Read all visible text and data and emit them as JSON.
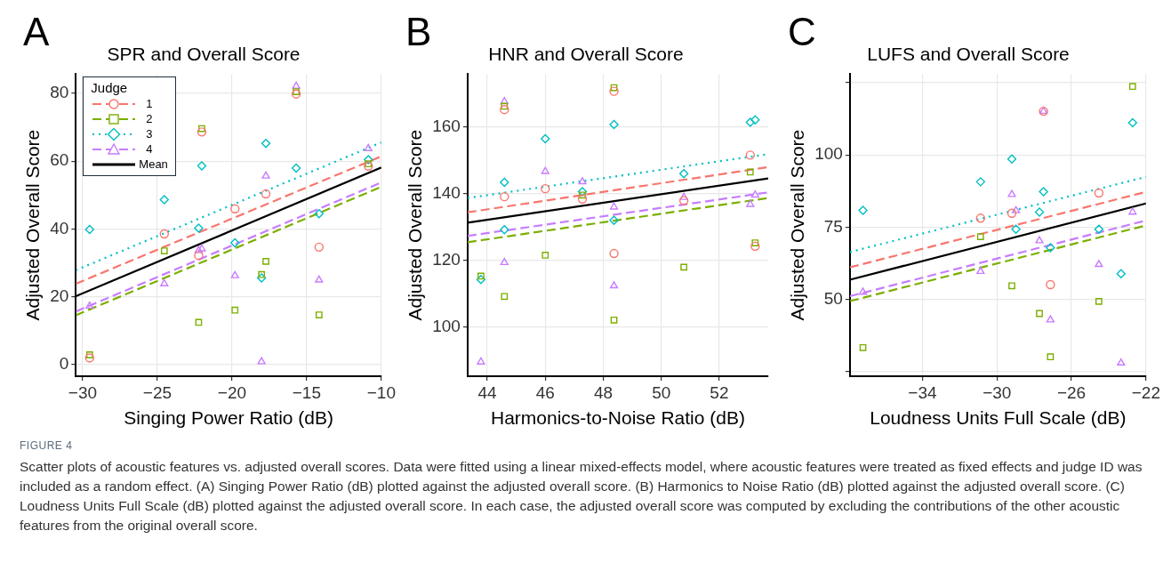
{
  "chart_data": [
    {
      "type": "scatter",
      "title": "SPR and Overall Score",
      "xlabel": "Singing Power Ratio (dB)",
      "ylabel": "Adjusted Overall Score",
      "annotations": [
        "A"
      ],
      "xlim": [
        -30.45,
        -10
      ],
      "xticks": [
        {
          "value": -30,
          "label": "−30"
        },
        {
          "value": -25,
          "label": "−25"
        },
        {
          "value": -20,
          "label": "−20"
        },
        {
          "value": -15,
          "label": "−15"
        },
        {
          "value": -10,
          "label": "−10"
        }
      ],
      "ylim": [
        -3.5,
        85.7
      ],
      "yticks": [
        0,
        20,
        40,
        60,
        80
      ],
      "grid": true,
      "legend": "top left",
      "legend_title": "Judge",
      "series": [
        {
          "name": "1",
          "color": "#f8766d",
          "marker": "circle",
          "line_style": "dashed",
          "x": [
            -29.53,
            -24.53,
            -22.23,
            -22.02,
            -19.8,
            -17.73,
            -15.7,
            -14.17,
            -10.87
          ],
          "values": [
            1.9,
            38.5,
            32.1,
            68.6,
            45.9,
            50.3,
            79.8,
            34.6,
            58.5
          ]
        },
        {
          "name": "2",
          "color": "#7cae00",
          "marker": "square",
          "line_style": "dashed",
          "x": [
            -29.53,
            -24.53,
            -22.23,
            -22.02,
            -19.8,
            -18.02,
            -17.73,
            -15.7,
            -14.17,
            -10.87
          ],
          "values": [
            2.8,
            33.5,
            12.4,
            69.6,
            16.0,
            26.5,
            30.4,
            80.5,
            14.6,
            59.2
          ]
        },
        {
          "name": "3",
          "color": "#00bfc4",
          "marker": "diamond",
          "line_style": "dotted",
          "x": [
            -29.53,
            -24.53,
            -22.23,
            -22.02,
            -19.8,
            -18.02,
            -17.73,
            -15.7,
            -14.17,
            -10.87
          ],
          "values": [
            39.8,
            48.6,
            40.2,
            58.6,
            35.9,
            25.5,
            65.2,
            57.9,
            44.5,
            60.4
          ]
        },
        {
          "name": "4",
          "color": "#c77cff",
          "marker": "triangle",
          "line_style": "dashed",
          "x": [
            -29.53,
            -24.53,
            -22.23,
            -22.02,
            -19.8,
            -18.02,
            -17.73,
            -15.7,
            -14.17,
            -10.87
          ],
          "values": [
            17.2,
            23.8,
            33.6,
            34.1,
            26.2,
            0.8,
            55.6,
            82.1,
            24.9,
            63.7
          ]
        },
        {
          "type": "line",
          "color": "#f8766d",
          "marker": "none",
          "line_style": "dashed",
          "x": [
            -30.45,
            -10
          ],
          "values": [
            23.8,
            61.4
          ]
        },
        {
          "type": "line",
          "color": "#7cae00",
          "marker": "none",
          "line_style": "dashed",
          "x": [
            -30.45,
            -10
          ],
          "values": [
            14.5,
            52.4
          ]
        },
        {
          "type": "line",
          "color": "#00bfc4",
          "marker": "none",
          "line_style": "dotted",
          "x": [
            -30.45,
            -10
          ],
          "values": [
            27.8,
            65.5
          ]
        },
        {
          "type": "line",
          "color": "#c77cff",
          "marker": "none",
          "line_style": "dashed",
          "x": [
            -30.45,
            -10
          ],
          "values": [
            15.6,
            53.7
          ]
        },
        {
          "type": "line",
          "name": "Mean",
          "color": "#000000",
          "marker": "none",
          "line_style": "solid",
          "x": [
            -30.45,
            -10
          ],
          "values": [
            20.1,
            58.1
          ]
        }
      ]
    },
    {
      "type": "scatter",
      "title": "HNR and Overall Score",
      "xlabel": "Harmonics-to-Noise Ratio (dB)",
      "ylabel": "Adjusted Overall Score",
      "annotations": [
        "B"
      ],
      "xlim": [
        43.32,
        53.69
      ],
      "xticks": [
        44,
        46,
        48,
        50,
        52
      ],
      "ylim": [
        85.1,
        176
      ],
      "yticks": [
        100,
        120,
        140,
        160
      ],
      "grid": true,
      "series": [
        {
          "color": "#f8766d",
          "marker": "circle",
          "x": [
            44.59,
            44.59,
            46.0,
            47.28,
            48.37,
            48.37,
            50.78,
            53.07,
            53.24
          ],
          "values": [
            165.3,
            139.1,
            141.5,
            138.4,
            170.8,
            122.0,
            137.9,
            151.6,
            124.2
          ]
        },
        {
          "color": "#7cae00",
          "marker": "square",
          "x": [
            43.78,
            44.59,
            44.59,
            46.0,
            47.28,
            48.37,
            48.37,
            50.78,
            53.07,
            53.24
          ],
          "values": [
            115.2,
            166.3,
            109.1,
            121.5,
            139.6,
            171.9,
            102.0,
            117.9,
            146.5,
            125.2
          ]
        },
        {
          "color": "#00bfc4",
          "marker": "diamond",
          "x": [
            43.78,
            44.59,
            44.59,
            46.0,
            47.28,
            48.37,
            48.37,
            50.78,
            53.07,
            53.24
          ],
          "values": [
            114.2,
            143.4,
            129.2,
            156.5,
            140.6,
            160.8,
            132.0,
            146.0,
            161.5,
            162.2
          ]
        },
        {
          "color": "#c77cff",
          "marker": "triangle",
          "x": [
            43.78,
            44.59,
            44.59,
            46.0,
            47.28,
            48.37,
            48.37,
            50.78,
            53.07,
            53.24
          ],
          "values": [
            89.4,
            167.7,
            119.3,
            146.7,
            143.6,
            136.0,
            112.3,
            138.9,
            136.8,
            139.6
          ]
        },
        {
          "type": "line",
          "color": "#f8766d",
          "marker": "none",
          "line_style": "dashed",
          "x": [
            43.32,
            53.69
          ],
          "values": [
            134.4,
            148.0
          ]
        },
        {
          "type": "line",
          "color": "#7cae00",
          "marker": "none",
          "line_style": "dashed",
          "x": [
            43.32,
            53.69
          ],
          "values": [
            125.4,
            138.7
          ]
        },
        {
          "type": "line",
          "color": "#00bfc4",
          "marker": "none",
          "line_style": "dotted",
          "x": [
            43.32,
            53.69
          ],
          "values": [
            138.7,
            151.9
          ]
        },
        {
          "type": "line",
          "color": "#c77cff",
          "marker": "none",
          "line_style": "dashed",
          "x": [
            43.32,
            53.69
          ],
          "values": [
            127.3,
            140.4
          ]
        },
        {
          "type": "line",
          "color": "#000000",
          "marker": "none",
          "line_style": "solid",
          "x": [
            43.32,
            53.69
          ],
          "values": [
            131.3,
            144.6
          ]
        }
      ]
    },
    {
      "type": "scatter",
      "title": "LUFS and Overall Score",
      "xlabel": "Loudness Units Full Scale (dB)",
      "ylabel": "Adjusted Overall Score",
      "annotations": [
        "C"
      ],
      "xlim": [
        -37.89,
        -22
      ],
      "xticks": [
        {
          "value": -34,
          "label": "−34"
        },
        {
          "value": -30,
          "label": "−30"
        },
        {
          "value": -26,
          "label": "−26"
        },
        {
          "value": -22,
          "label": "−22"
        }
      ],
      "ylim": [
        23.4,
        128
      ],
      "yticks": [
        {
          "value": 25,
          "label": null
        },
        50,
        75,
        100,
        {
          "value": 125,
          "label": null
        }
      ],
      "grid": true,
      "series": [
        {
          "color": "#f8766d",
          "marker": "circle",
          "x": [
            -30.88,
            -29.2,
            -27.5,
            -27.13,
            -24.53
          ],
          "values": [
            78.1,
            79.8,
            115.1,
            55.1,
            86.8
          ]
        },
        {
          "color": "#7cae00",
          "marker": "square",
          "x": [
            -37.19,
            -30.88,
            -29.2,
            -27.72,
            -27.13,
            -24.53,
            -22.72
          ],
          "values": [
            33.3,
            71.7,
            54.7,
            45.1,
            30.1,
            49.3,
            123.7
          ]
        },
        {
          "color": "#00bfc4",
          "marker": "diamond",
          "x": [
            -37.19,
            -30.88,
            -29.2,
            -28.98,
            -27.72,
            -27.5,
            -27.13,
            -24.53,
            -23.34,
            -22.72
          ],
          "values": [
            80.8,
            90.7,
            98.6,
            74.3,
            80.2,
            87.3,
            67.9,
            74.3,
            58.9,
            111.1
          ]
        },
        {
          "color": "#c77cff",
          "marker": "triangle",
          "x": [
            -37.19,
            -30.88,
            -29.2,
            -28.98,
            -27.72,
            -27.5,
            -27.13,
            -24.53,
            -23.34,
            -22.72
          ],
          "values": [
            52.5,
            59.7,
            86.3,
            80.7,
            70.3,
            115.1,
            42.9,
            62.1,
            28.0,
            80.2
          ]
        },
        {
          "type": "line",
          "color": "#f8766d",
          "marker": "none",
          "line_style": "dashed",
          "x": [
            -37.89,
            -22
          ],
          "values": [
            61.1,
            87.2
          ]
        },
        {
          "type": "line",
          "color": "#7cae00",
          "marker": "none",
          "line_style": "dashed",
          "x": [
            -37.89,
            -22
          ],
          "values": [
            49.4,
            75.6
          ]
        },
        {
          "type": "line",
          "color": "#00bfc4",
          "marker": "none",
          "line_style": "dotted",
          "x": [
            -37.89,
            -22
          ],
          "values": [
            66.4,
            92.4
          ]
        },
        {
          "type": "line",
          "color": "#c77cff",
          "marker": "none",
          "line_style": "dashed",
          "x": [
            -37.89,
            -22
          ],
          "values": [
            51.1,
            77.3
          ]
        },
        {
          "type": "line",
          "color": "#000000",
          "marker": "none",
          "line_style": "solid",
          "x": [
            -37.89,
            -22
          ],
          "values": [
            56.8,
            83.2
          ]
        }
      ]
    },
    {
      "type": "other",
      "annotations": [
        "FIGURE 4",
        "Scatter plots of acoustic features vs. adjusted overall scores. Data were fitted using a linear mixed-effects model, where acoustic features were treated as fixed effects and judge ID was included as a random effect. (A) Singing Power Ratio (dB) plotted against the adjusted overall score. (B) Harmonics to Noise Ratio (dB) plotted against the adjusted overall score. (C) Loudness Units Full Scale (dB) plotted against the adjusted overall score. In each case, the adjusted overall score was computed by excluding the contributions of the other acoustic features from the original overall score."
      ]
    }
  ]
}
